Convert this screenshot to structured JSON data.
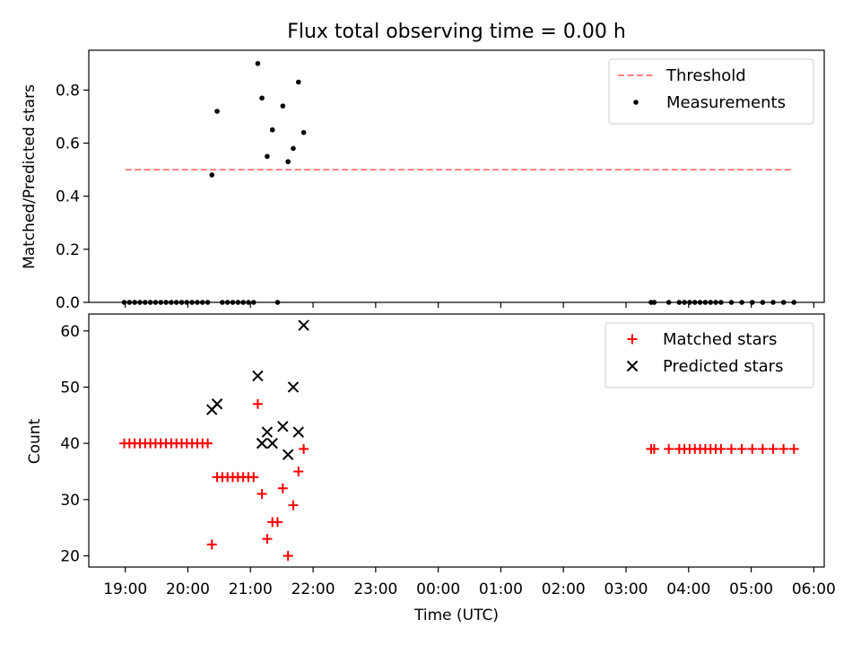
{
  "chart_data": [
    {
      "type": "scatter",
      "title": "Flux total observing time = 0.00 h",
      "xlabel": "",
      "ylabel": "Matched/Predicted stars",
      "xlim": [
        "18:25",
        "06:10"
      ],
      "ylim": [
        0,
        0.95
      ],
      "yticks": [
        0.0,
        0.2,
        0.4,
        0.6,
        0.8
      ],
      "ytick_labels": [
        "0.0",
        "0.2",
        "0.4",
        "0.6",
        "0.8"
      ],
      "legend_placement": "top-right",
      "lines": [
        {
          "name": "Threshold",
          "style": "dashed",
          "color": "#ff7f7f",
          "x": [
            "19:00",
            "05:40"
          ],
          "y": [
            0.5,
            0.5
          ]
        }
      ],
      "series": [
        {
          "name": "Measurements",
          "color": "#000000",
          "marker": "dot",
          "points": [
            [
              "18:59",
              0.0
            ],
            [
              "19:04",
              0.0
            ],
            [
              "19:09",
              0.0
            ],
            [
              "19:14",
              0.0
            ],
            [
              "19:19",
              0.0
            ],
            [
              "19:24",
              0.0
            ],
            [
              "19:29",
              0.0
            ],
            [
              "19:34",
              0.0
            ],
            [
              "19:39",
              0.0
            ],
            [
              "19:44",
              0.0
            ],
            [
              "19:49",
              0.0
            ],
            [
              "19:54",
              0.0
            ],
            [
              "19:59",
              0.0
            ],
            [
              "20:04",
              0.0
            ],
            [
              "20:09",
              0.0
            ],
            [
              "20:14",
              0.0
            ],
            [
              "20:19",
              0.0
            ],
            [
              "20:23",
              0.48
            ],
            [
              "20:28",
              0.72
            ],
            [
              "20:33",
              0.0
            ],
            [
              "20:38",
              0.0
            ],
            [
              "20:43",
              0.0
            ],
            [
              "20:48",
              0.0
            ],
            [
              "20:53",
              0.0
            ],
            [
              "20:58",
              0.0
            ],
            [
              "21:03",
              0.0
            ],
            [
              "21:07",
              0.9
            ],
            [
              "21:11",
              0.77
            ],
            [
              "21:16",
              0.55
            ],
            [
              "21:21",
              0.65
            ],
            [
              "21:26",
              0.0
            ],
            [
              "21:31",
              0.74
            ],
            [
              "21:36",
              0.53
            ],
            [
              "21:41",
              0.58
            ],
            [
              "21:46",
              0.83
            ],
            [
              "21:51",
              0.64
            ],
            [
              "03:24",
              0.0
            ],
            [
              "03:27",
              0.0
            ],
            [
              "03:41",
              0.0
            ],
            [
              "03:51",
              0.0
            ],
            [
              "03:56",
              0.0
            ],
            [
              "04:01",
              0.0
            ],
            [
              "04:06",
              0.0
            ],
            [
              "04:11",
              0.0
            ],
            [
              "04:16",
              0.0
            ],
            [
              "04:21",
              0.0
            ],
            [
              "04:26",
              0.0
            ],
            [
              "04:31",
              0.0
            ],
            [
              "04:41",
              0.0
            ],
            [
              "04:51",
              0.0
            ],
            [
              "05:01",
              0.0
            ],
            [
              "05:11",
              0.0
            ],
            [
              "05:21",
              0.0
            ],
            [
              "05:31",
              0.0
            ],
            [
              "05:41",
              0.0
            ]
          ]
        }
      ]
    },
    {
      "type": "scatter",
      "title": "",
      "xlabel": "Time (UTC)",
      "ylabel": "Count",
      "xlim": [
        "18:25",
        "06:10"
      ],
      "ylim": [
        18,
        63
      ],
      "yticks": [
        20,
        30,
        40,
        50,
        60
      ],
      "ytick_labels": [
        "20",
        "30",
        "40",
        "50",
        "60"
      ],
      "xticks": [
        "19:00",
        "20:00",
        "21:00",
        "22:00",
        "23:00",
        "00:00",
        "01:00",
        "02:00",
        "03:00",
        "04:00",
        "05:00",
        "06:00"
      ],
      "legend_placement": "top-right",
      "series": [
        {
          "name": "Matched stars",
          "color": "#ff0000",
          "marker": "plus",
          "points": [
            [
              "18:59",
              40
            ],
            [
              "19:04",
              40
            ],
            [
              "19:09",
              40
            ],
            [
              "19:14",
              40
            ],
            [
              "19:19",
              40
            ],
            [
              "19:24",
              40
            ],
            [
              "19:29",
              40
            ],
            [
              "19:34",
              40
            ],
            [
              "19:39",
              40
            ],
            [
              "19:44",
              40
            ],
            [
              "19:49",
              40
            ],
            [
              "19:54",
              40
            ],
            [
              "19:59",
              40
            ],
            [
              "20:04",
              40
            ],
            [
              "20:09",
              40
            ],
            [
              "20:14",
              40
            ],
            [
              "20:19",
              40
            ],
            [
              "20:23",
              22
            ],
            [
              "20:28",
              34
            ],
            [
              "20:33",
              34
            ],
            [
              "20:38",
              34
            ],
            [
              "20:43",
              34
            ],
            [
              "20:48",
              34
            ],
            [
              "20:53",
              34
            ],
            [
              "20:58",
              34
            ],
            [
              "21:03",
              34
            ],
            [
              "21:07",
              47
            ],
            [
              "21:11",
              31
            ],
            [
              "21:16",
              23
            ],
            [
              "21:21",
              26
            ],
            [
              "21:26",
              26
            ],
            [
              "21:31",
              32
            ],
            [
              "21:36",
              20
            ],
            [
              "21:41",
              29
            ],
            [
              "21:46",
              35
            ],
            [
              "21:51",
              39
            ],
            [
              "03:24",
              39
            ],
            [
              "03:27",
              39
            ],
            [
              "03:41",
              39
            ],
            [
              "03:51",
              39
            ],
            [
              "03:56",
              39
            ],
            [
              "04:01",
              39
            ],
            [
              "04:06",
              39
            ],
            [
              "04:11",
              39
            ],
            [
              "04:16",
              39
            ],
            [
              "04:21",
              39
            ],
            [
              "04:26",
              39
            ],
            [
              "04:31",
              39
            ],
            [
              "04:41",
              39
            ],
            [
              "04:51",
              39
            ],
            [
              "05:01",
              39
            ],
            [
              "05:11",
              39
            ],
            [
              "05:21",
              39
            ],
            [
              "05:31",
              39
            ],
            [
              "05:41",
              39
            ]
          ]
        },
        {
          "name": "Predicted stars",
          "color": "#000000",
          "marker": "x",
          "points": [
            [
              "20:23",
              46
            ],
            [
              "20:28",
              47
            ],
            [
              "21:07",
              52
            ],
            [
              "21:11",
              40
            ],
            [
              "21:16",
              42
            ],
            [
              "21:21",
              40
            ],
            [
              "21:31",
              43
            ],
            [
              "21:36",
              38
            ],
            [
              "21:41",
              50
            ],
            [
              "21:46",
              42
            ],
            [
              "21:51",
              61
            ]
          ]
        }
      ]
    }
  ]
}
